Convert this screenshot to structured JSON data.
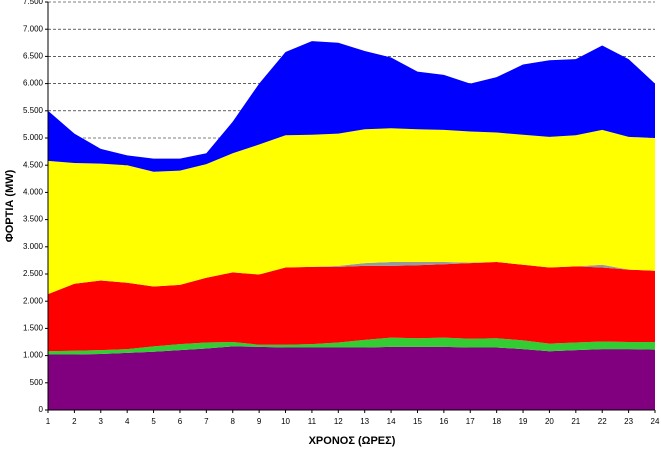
{
  "chart_data": {
    "type": "stacked-area",
    "x_label": "ΧΡΟΝΟΣ (ΩΡΕΣ)",
    "y_label": "ΦΟΡΤΙΑ (MW)",
    "x": [
      1,
      2,
      3,
      4,
      5,
      6,
      7,
      8,
      9,
      10,
      11,
      12,
      13,
      14,
      15,
      16,
      17,
      18,
      19,
      20,
      21,
      22,
      23,
      24
    ],
    "xlim": [
      1,
      24
    ],
    "xticks": [
      1,
      2,
      3,
      4,
      5,
      6,
      7,
      8,
      9,
      10,
      11,
      12,
      13,
      14,
      15,
      16,
      17,
      18,
      19,
      20,
      21,
      22,
      23,
      24
    ],
    "ylim": [
      0,
      7500
    ],
    "yticks": [
      0,
      500,
      {
        "value": 1000,
        "label": "1.000"
      },
      {
        "value": 1500,
        "label": "1.500"
      },
      {
        "value": 2000,
        "label": "2.000"
      },
      {
        "value": 2500,
        "label": "2.500"
      },
      {
        "value": 3000,
        "label": "3.000"
      },
      {
        "value": 3500,
        "label": "3.500"
      },
      {
        "value": 4000,
        "label": "4.000"
      },
      {
        "value": 4500,
        "label": "4.500"
      },
      {
        "value": 5000,
        "label": "5.000"
      },
      {
        "value": 5500,
        "label": "5.500"
      },
      {
        "value": 6000,
        "label": "6.000"
      },
      {
        "value": 6500,
        "label": "6.500"
      },
      {
        "value": 7000,
        "label": "7.000"
      },
      {
        "value": 7500,
        "label": "7.500"
      }
    ],
    "grid": true,
    "series": [
      {
        "color": "#800080",
        "values": [
          1020,
          1020,
          1030,
          1050,
          1070,
          1100,
          1130,
          1170,
          1160,
          1150,
          1150,
          1150,
          1150,
          1160,
          1160,
          1160,
          1150,
          1150,
          1120,
          1080,
          1100,
          1120,
          1120,
          1110
        ]
      },
      {
        "color": "#33cc33",
        "values": [
          60,
          70,
          70,
          70,
          100,
          110,
          110,
          80,
          40,
          50,
          60,
          90,
          140,
          170,
          160,
          170,
          160,
          170,
          160,
          140,
          140,
          140,
          130,
          140
        ]
      },
      {
        "color": "#ff0000",
        "values": [
          1050,
          1230,
          1280,
          1220,
          1100,
          1090,
          1190,
          1280,
          1290,
          1420,
          1420,
          1390,
          1360,
          1320,
          1340,
          1350,
          1390,
          1400,
          1390,
          1400,
          1400,
          1360,
          1330,
          1310
        ]
      },
      {
        "color": "#999999",
        "values": [
          0,
          0,
          0,
          0,
          0,
          0,
          0,
          0,
          0,
          0,
          0,
          20,
          50,
          70,
          60,
          40,
          10,
          0,
          0,
          0,
          0,
          50,
          0,
          0
        ]
      },
      {
        "color": "#ffff00",
        "values": [
          2450,
          2220,
          2150,
          2160,
          2110,
          2100,
          2090,
          2190,
          2390,
          2430,
          2430,
          2430,
          2460,
          2460,
          2440,
          2430,
          2410,
          2380,
          2390,
          2400,
          2410,
          2480,
          2440,
          2440
        ]
      },
      {
        "color": "#0000ff",
        "values": [
          920,
          540,
          270,
          180,
          240,
          220,
          200,
          580,
          1120,
          1530,
          1720,
          1670,
          1440,
          1300,
          1060,
          1010,
          880,
          1020,
          1290,
          1410,
          1400,
          1550,
          1430,
          1000
        ]
      }
    ]
  }
}
